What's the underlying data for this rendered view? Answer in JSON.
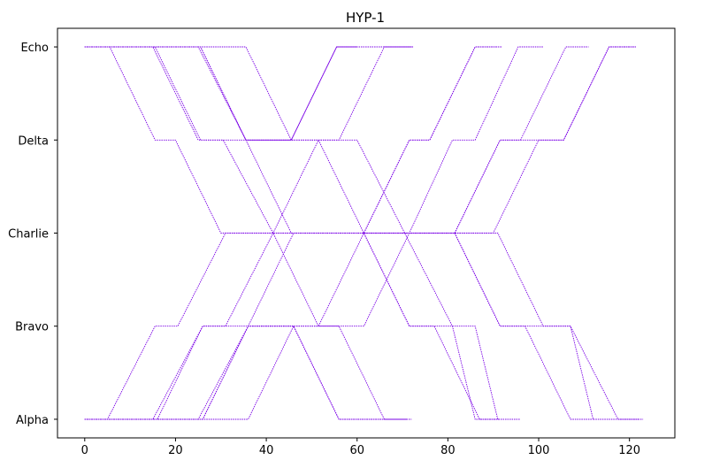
{
  "chart_data": {
    "type": "line",
    "title": "HYP-1",
    "xlabel": "",
    "ylabel": "",
    "xlim": [
      -6,
      130
    ],
    "ylim": [
      -0.2,
      4.2
    ],
    "x_ticks": [
      0,
      20,
      40,
      60,
      80,
      100,
      120
    ],
    "y_ticks": [
      {
        "value": 0,
        "label": "Alpha"
      },
      {
        "value": 1,
        "label": "Bravo"
      },
      {
        "value": 2,
        "label": "Charlie"
      },
      {
        "value": 3,
        "label": "Delta"
      },
      {
        "value": 4,
        "label": "Echo"
      }
    ],
    "grid": false,
    "legend": "none",
    "color": "#7a00e6",
    "series": [
      {
        "points": [
          [
            0,
            4
          ],
          [
            25.5,
            4
          ],
          [
            35.5,
            3
          ],
          [
            45.5,
            3
          ],
          [
            55.5,
            4
          ],
          [
            60,
            4
          ]
        ]
      },
      {
        "points": [
          [
            0,
            4
          ],
          [
            5.5,
            4
          ],
          [
            15.5,
            3
          ],
          [
            20,
            3
          ],
          [
            30,
            2
          ],
          [
            91,
            2
          ],
          [
            101,
            1
          ],
          [
            107,
            1
          ],
          [
            112,
            0
          ],
          [
            122,
            0
          ]
        ]
      },
      {
        "points": [
          [
            0,
            4
          ],
          [
            15.5,
            4
          ],
          [
            25.5,
            3
          ],
          [
            30.5,
            3
          ],
          [
            41.5,
            2
          ],
          [
            51.5,
            1
          ],
          [
            56,
            1
          ],
          [
            66,
            0
          ],
          [
            71,
            0
          ]
        ]
      },
      {
        "points": [
          [
            0,
            4
          ],
          [
            25.5,
            4
          ],
          [
            35.5,
            3
          ],
          [
            55.5,
            3
          ],
          [
            60,
            3
          ],
          [
            70.5,
            2
          ],
          [
            81,
            1
          ],
          [
            86,
            1
          ],
          [
            91,
            0
          ],
          [
            96,
            0
          ]
        ]
      },
      {
        "points": [
          [
            0,
            4
          ],
          [
            35.5,
            4
          ],
          [
            45.5,
            3
          ],
          [
            51.5,
            3
          ]
        ]
      },
      {
        "points": [
          [
            51.5,
            3
          ],
          [
            61.5,
            2
          ],
          [
            71.5,
            1
          ],
          [
            81,
            1
          ],
          [
            86,
            0
          ],
          [
            91,
            0
          ]
        ]
      },
      {
        "points": [
          [
            0,
            0
          ],
          [
            26,
            0
          ],
          [
            36,
            1
          ],
          [
            46,
            1
          ],
          [
            56,
            0
          ],
          [
            66,
            0
          ]
        ]
      },
      {
        "points": [
          [
            0,
            0
          ],
          [
            5,
            0
          ],
          [
            15.5,
            1
          ],
          [
            20.5,
            1
          ],
          [
            31,
            2
          ],
          [
            90,
            2
          ],
          [
            100,
            3
          ],
          [
            105.5,
            3
          ],
          [
            115.5,
            4
          ],
          [
            121,
            4
          ]
        ]
      },
      {
        "points": [
          [
            0,
            0
          ],
          [
            16,
            0
          ],
          [
            26,
            1
          ],
          [
            31,
            1
          ],
          [
            41.5,
            2
          ],
          [
            51.5,
            3
          ],
          [
            56,
            3
          ],
          [
            66,
            4
          ],
          [
            72,
            4
          ]
        ]
      },
      {
        "points": [
          [
            0,
            0
          ],
          [
            26,
            0
          ],
          [
            36,
            1
          ],
          [
            56,
            1
          ],
          [
            61.5,
            1
          ],
          [
            71.5,
            2
          ],
          [
            81,
            3
          ],
          [
            86,
            3
          ],
          [
            95.5,
            4
          ],
          [
            101,
            4
          ]
        ]
      },
      {
        "points": [
          [
            0,
            0
          ],
          [
            36,
            0
          ],
          [
            46,
            1
          ],
          [
            51.5,
            1
          ]
        ]
      },
      {
        "points": [
          [
            51.5,
            1
          ],
          [
            61.5,
            2
          ],
          [
            71.5,
            3
          ],
          [
            76,
            3
          ],
          [
            86,
            4
          ],
          [
            92,
            4
          ]
        ]
      },
      {
        "points": [
          [
            0,
            4
          ],
          [
            25,
            4
          ],
          [
            35.5,
            3
          ],
          [
            45.5,
            3
          ],
          [
            55.5,
            4
          ],
          [
            70.5,
            4
          ],
          [
            72.5,
            4
          ]
        ]
      },
      {
        "points": [
          [
            0,
            0
          ],
          [
            25,
            0
          ],
          [
            36,
            1
          ],
          [
            46,
            1
          ],
          [
            56,
            0
          ],
          [
            67,
            0
          ],
          [
            72,
            0
          ]
        ]
      },
      {
        "points": [
          [
            0,
            4
          ],
          [
            15,
            4
          ],
          [
            25,
            3
          ],
          [
            35.5,
            3
          ],
          [
            45.5,
            2
          ],
          [
            51.5,
            2
          ],
          [
            61.5,
            2
          ],
          [
            71.5,
            3
          ],
          [
            76,
            3
          ],
          [
            86,
            4
          ],
          [
            91,
            4
          ]
        ]
      },
      {
        "points": [
          [
            0,
            0
          ],
          [
            15,
            0
          ],
          [
            26,
            1
          ],
          [
            36,
            1
          ],
          [
            46,
            2
          ],
          [
            51.5,
            2
          ],
          [
            61.5,
            2
          ],
          [
            71.5,
            1
          ],
          [
            77,
            1
          ],
          [
            87,
            0
          ],
          [
            91.5,
            0
          ]
        ]
      },
      {
        "points": [
          [
            61.5,
            2
          ],
          [
            81.5,
            2
          ],
          [
            91.5,
            3
          ],
          [
            96,
            3
          ],
          [
            106,
            4
          ],
          [
            111,
            4
          ]
        ]
      },
      {
        "points": [
          [
            61.5,
            2
          ],
          [
            81.5,
            2
          ],
          [
            91.5,
            1
          ],
          [
            97,
            1
          ],
          [
            107,
            0
          ],
          [
            112,
            0
          ]
        ]
      },
      {
        "points": [
          [
            81.5,
            2
          ],
          [
            91.5,
            3
          ],
          [
            100.5,
            3
          ],
          [
            105.5,
            3
          ],
          [
            115.5,
            4
          ],
          [
            121.5,
            4
          ]
        ]
      },
      {
        "points": [
          [
            81.5,
            2
          ],
          [
            91.5,
            1
          ],
          [
            102,
            1
          ],
          [
            107,
            1
          ],
          [
            117.5,
            0
          ],
          [
            123,
            0
          ]
        ]
      }
    ]
  }
}
